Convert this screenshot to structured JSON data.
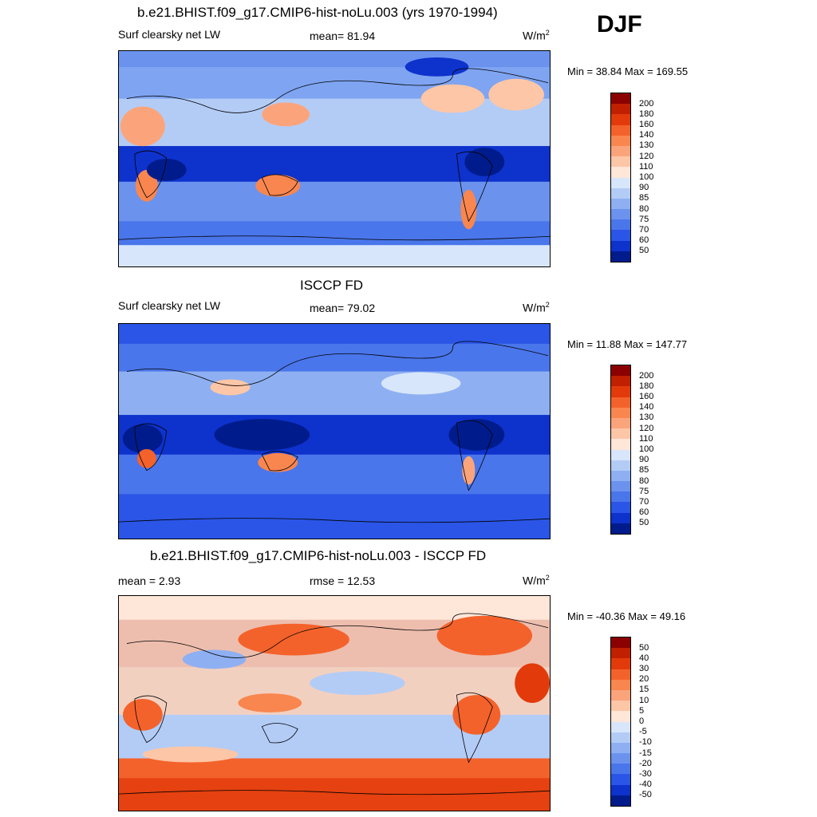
{
  "season": "DJF",
  "panels": [
    {
      "title": "b.e21.BHIST.f09_g17.CMIP6-hist-noLu.003 (yrs 1970-1994)",
      "left_label": "Surf clearsky net LW",
      "center_label": "mean=  81.94",
      "units": "W/m",
      "units_sup": "2",
      "minmax": "Min =  38.84 Max = 169.55",
      "bg": "#2a5fe6",
      "colorbar": {
        "labels": [
          "200",
          "180",
          "160",
          "140",
          "130",
          "120",
          "110",
          "100",
          "90",
          "85",
          "80",
          "75",
          "70",
          "60",
          "50"
        ],
        "colors": [
          "#8b0000",
          "#c02000",
          "#e23a0a",
          "#f4622b",
          "#f9864f",
          "#fba47c",
          "#fdc6a6",
          "#fee6d8",
          "#d8e6fb",
          "#b3ccf6",
          "#8eb0f2",
          "#6b93ee",
          "#4a76eb",
          "#2a55e6",
          "#0e32cc",
          "#001c8c"
        ]
      }
    },
    {
      "title": "ISCCP FD",
      "left_label": "Surf clearsky net LW",
      "center_label": "mean=  79.02",
      "units": "W/m",
      "units_sup": "2",
      "minmax": "Min =  11.88 Max = 147.77",
      "bg": "#1b48dc",
      "colorbar": {
        "labels": [
          "200",
          "180",
          "160",
          "140",
          "130",
          "120",
          "110",
          "100",
          "90",
          "85",
          "80",
          "75",
          "70",
          "60",
          "50"
        ],
        "colors": [
          "#8b0000",
          "#c02000",
          "#e23a0a",
          "#f4622b",
          "#f9864f",
          "#fba47c",
          "#fdc6a6",
          "#fee6d8",
          "#d8e6fb",
          "#b3ccf6",
          "#8eb0f2",
          "#6b93ee",
          "#4a76eb",
          "#2a55e6",
          "#0e32cc",
          "#001c8c"
        ]
      }
    },
    {
      "title": "b.e21.BHIST.f09_g17.CMIP6-hist-noLu.003 - ISCCP FD",
      "left_label": "mean =   2.93",
      "center_label": "rmse =  12.53",
      "units": "W/m",
      "units_sup": "2",
      "minmax": "Min = -40.36 Max =  49.16",
      "bg": "#c8d8f8",
      "colorbar": {
        "labels": [
          "50",
          "40",
          "30",
          "20",
          "15",
          "10",
          "5",
          "0",
          "-5",
          "-10",
          "-15",
          "-20",
          "-30",
          "-40",
          "-50"
        ],
        "colors": [
          "#8b0000",
          "#c02000",
          "#e23a0a",
          "#f4622b",
          "#f9864f",
          "#fba47c",
          "#fdc6a6",
          "#fee6d8",
          "#d8e6fb",
          "#b3ccf6",
          "#8eb0f2",
          "#6b93ee",
          "#4a76eb",
          "#2a55e6",
          "#0e32cc",
          "#001c8c"
        ]
      }
    }
  ]
}
